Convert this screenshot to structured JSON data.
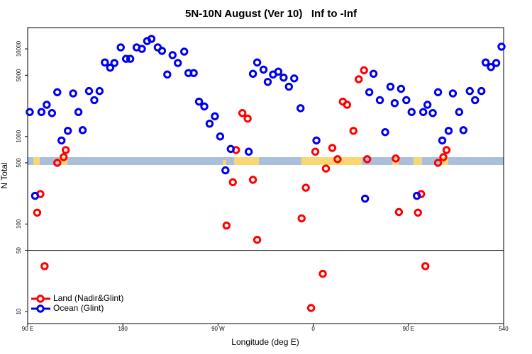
{
  "chart_data": {
    "type": "scatter",
    "title": "5N-10N August (Ver 10)   Inf to -Inf",
    "x_label": "Longitude (deg E)",
    "y_label": "N Total",
    "xlim": [
      90,
      540
    ],
    "xticks": [
      {
        "value": 90,
        "label": "90 E"
      },
      180,
      {
        "value": 270,
        "label": "90 W"
      },
      {
        "value": 360,
        "label": "0"
      },
      {
        "value": 450,
        "label": "90 E"
      },
      540
    ],
    "ylim": [
      7.3,
      17500
    ],
    "y_scale": "log",
    "yticks": [
      10,
      50,
      100,
      500,
      1000,
      5000,
      10000
    ],
    "hline": 50,
    "legend": "bottom-left",
    "series": [
      {
        "name": "Land (Nadir&Glint)",
        "color": "#ff0000",
        "x": [
          99,
          102,
          106,
          118,
          124,
          126,
          278,
          284,
          287,
          293,
          298,
          303,
          307,
          349,
          353,
          358,
          362,
          369,
          372,
          378,
          383,
          388,
          392,
          398,
          403,
          408,
          411,
          438,
          441,
          459,
          462,
          466,
          478,
          483,
          486
        ],
        "values": [
          135,
          220,
          33,
          500,
          580,
          700,
          96,
          300,
          700,
          1850,
          1600,
          320,
          66,
          116,
          260,
          11,
          670,
          27,
          430,
          740,
          550,
          2500,
          2300,
          1160,
          4500,
          5700,
          550,
          560,
          137,
          135,
          220,
          33,
          500,
          580,
          700
        ]
      },
      {
        "name": "Ocean (Glint)",
        "color": "#0000ee",
        "x": [
          92,
          97,
          103,
          108,
          113,
          118,
          122,
          128,
          133,
          138,
          142,
          148,
          153,
          158,
          163,
          168,
          172,
          178,
          183,
          187,
          193,
          198,
          203,
          207,
          213,
          217,
          222,
          227,
          232,
          238,
          242,
          247,
          252,
          257,
          262,
          267,
          272,
          277,
          282,
          299,
          303,
          307,
          313,
          317,
          322,
          327,
          332,
          337,
          342,
          348,
          363,
          409,
          413,
          417,
          423,
          428,
          433,
          437,
          443,
          448,
          453,
          458,
          464,
          468,
          473,
          478,
          482,
          488,
          492,
          498,
          502,
          508,
          513,
          519,
          523,
          528,
          533,
          538
        ],
        "values": [
          1900,
          210,
          1900,
          2300,
          1850,
          3200,
          900,
          1160,
          3100,
          1900,
          1180,
          3300,
          2600,
          3300,
          7000,
          6100,
          6900,
          10400,
          7700,
          7700,
          10400,
          10000,
          12300,
          13000,
          10400,
          9500,
          5100,
          8500,
          6900,
          9300,
          5300,
          5300,
          2500,
          2200,
          1400,
          1700,
          1000,
          410,
          720,
          670,
          5200,
          7000,
          5800,
          4200,
          5100,
          5500,
          4700,
          3700,
          4600,
          2100,
          900,
          195,
          3200,
          5200,
          2600,
          1120,
          3700,
          2400,
          3500,
          2600,
          1900,
          210,
          1900,
          2300,
          1850,
          3200,
          900,
          1160,
          3100,
          1900,
          1180,
          3300,
          2600,
          3300,
          7000,
          6200,
          6900,
          10600
        ]
      }
    ]
  }
}
